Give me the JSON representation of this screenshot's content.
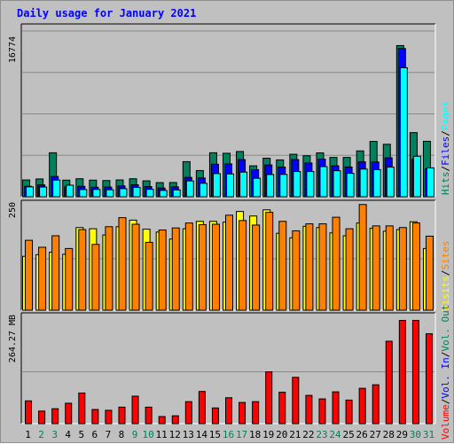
{
  "title": "Daily usage for January 2021",
  "colors": {
    "hits": "#00805c",
    "files": "#0000ff",
    "pages": "#00ffff",
    "visits": "#ffff00",
    "sites": "#ff8000",
    "kbytes": "#ff0000",
    "weekend_label": "#00805c",
    "weekday_label": "#000000",
    "frame": "#c0c0c0",
    "plot_bg": "#c0c0c0"
  },
  "chart_data": [
    {
      "type": "bar",
      "panel": "top",
      "ylabel": "16774",
      "legend": [
        {
          "name": "Hits",
          "color": "#00805c"
        },
        {
          "name": "Files",
          "color": "#0000ff"
        },
        {
          "name": "Pages",
          "color": "#00ffff"
        }
      ],
      "legend_separator": "/",
      "ylim": [
        0,
        16774
      ],
      "x": [
        1,
        2,
        3,
        4,
        5,
        6,
        7,
        8,
        9,
        10,
        11,
        12,
        13,
        14,
        15,
        16,
        17,
        18,
        19,
        20,
        21,
        22,
        23,
        24,
        25,
        26,
        27,
        28,
        29,
        30,
        31
      ],
      "series": [
        {
          "name": "Hits",
          "values": [
            1700,
            1800,
            4450,
            1680,
            1820,
            1680,
            1640,
            1700,
            1820,
            1610,
            1430,
            1440,
            3550,
            2650,
            4450,
            4400,
            4580,
            3130,
            3900,
            3730,
            4300,
            4150,
            4440,
            3980,
            3980,
            4640,
            5600,
            5310,
            15300,
            6490,
            5610
          ]
        },
        {
          "name": "Files",
          "values": [
            1050,
            1200,
            2050,
            1000,
            1050,
            960,
            980,
            1100,
            1210,
            1030,
            880,
            1000,
            1960,
            1900,
            3290,
            3320,
            3760,
            2740,
            3220,
            3000,
            3760,
            3420,
            3800,
            3130,
            3010,
            3530,
            3520,
            3940,
            15000,
            3800,
            2830
          ]
        },
        {
          "name": "Pages",
          "values": [
            1000,
            980,
            1690,
            1170,
            730,
            740,
            710,
            820,
            940,
            750,
            640,
            690,
            1600,
            1360,
            2340,
            2310,
            2490,
            1870,
            2250,
            2260,
            2550,
            2550,
            3050,
            2630,
            2370,
            2800,
            2740,
            3000,
            13060,
            4100,
            2920
          ]
        }
      ]
    },
    {
      "type": "bar",
      "panel": "middle",
      "ylabel": "250",
      "legend": [
        {
          "name": "Visits",
          "color": "#ffff00"
        },
        {
          "name": "Sites",
          "color": "#ff8000"
        }
      ],
      "legend_separator": "/",
      "ylim": [
        0,
        250
      ],
      "x": [
        1,
        2,
        3,
        4,
        5,
        6,
        7,
        8,
        9,
        10,
        11,
        12,
        13,
        14,
        15,
        16,
        17,
        18,
        19,
        20,
        21,
        22,
        23,
        24,
        25,
        26,
        27,
        28,
        29,
        30,
        31
      ],
      "series": [
        {
          "name": "Visits",
          "values": [
            131,
            135,
            141,
            136,
            201,
            198,
            183,
            203,
            219,
            197,
            190,
            173,
            198,
            216,
            216,
            214,
            240,
            229,
            244,
            187,
            176,
            204,
            201,
            188,
            181,
            212,
            199,
            192,
            196,
            215,
            150
          ]
        },
        {
          "name": "Sites",
          "values": [
            170,
            153,
            181,
            150,
            196,
            160,
            203,
            225,
            209,
            165,
            195,
            200,
            212,
            208,
            209,
            231,
            218,
            207,
            238,
            216,
            193,
            210,
            210,
            226,
            198,
            257,
            205,
            205,
            201,
            212,
            180
          ]
        }
      ]
    },
    {
      "type": "bar",
      "panel": "bottom",
      "ylabel": "264.27 MB",
      "legend": [
        {
          "name": "Volume",
          "color": "#ff0000"
        },
        {
          "name": "Vol. In",
          "color": "#0000ff"
        },
        {
          "name": "Vol. Out",
          "color": "#00805c"
        }
      ],
      "legend_separator": "/",
      "ylim": [
        0,
        264.27
      ],
      "x": [
        1,
        2,
        3,
        4,
        5,
        6,
        7,
        8,
        9,
        10,
        11,
        12,
        13,
        14,
        15,
        16,
        17,
        18,
        19,
        20,
        21,
        22,
        23,
        24,
        25,
        26,
        27,
        28,
        29,
        30,
        31
      ],
      "series": [
        {
          "name": "Volume",
          "values": [
            58,
            32,
            38,
            52,
            78,
            36,
            34,
            42,
            70,
            42,
            18,
            20,
            56,
            82,
            40,
            66,
            54,
            56,
            132,
            80,
            118,
            72,
            63,
            81,
            60,
            90,
            99,
            210,
            263,
            263,
            229
          ]
        }
      ]
    }
  ],
  "x_labels": [
    "1",
    "2",
    "3",
    "4",
    "5",
    "6",
    "7",
    "8",
    "9",
    "10",
    "11",
    "12",
    "13",
    "14",
    "15",
    "16",
    "17",
    "18",
    "19",
    "20",
    "21",
    "22",
    "23",
    "24",
    "25",
    "26",
    "27",
    "28",
    "29",
    "30",
    "31"
  ],
  "weekend_days": [
    2,
    3,
    9,
    10,
    16,
    17,
    23,
    24,
    30,
    31
  ]
}
